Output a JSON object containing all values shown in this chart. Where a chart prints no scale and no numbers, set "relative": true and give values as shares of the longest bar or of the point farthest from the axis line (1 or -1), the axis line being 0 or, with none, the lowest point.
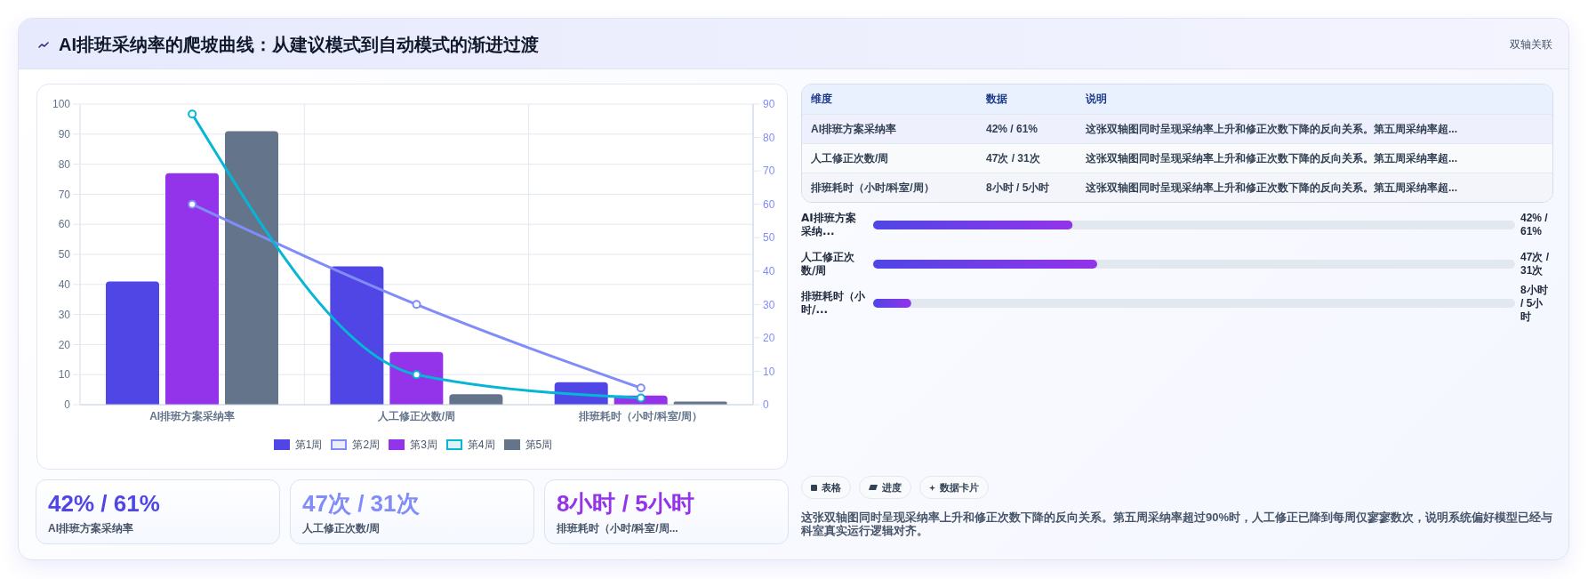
{
  "chart_data": [
    {
      "type": "other",
      "title": "AI排班采纳率的爬坡曲线：从建议模式到自动模式的渐进过渡",
      "subtitle": "双轴关联"
    },
    {
      "type": "bar",
      "categories": [
        "AI排班方案采纳率",
        "人工修正次数/周",
        "排班耗时（小时/科室/周）"
      ],
      "series": [
        {
          "name": "第1周",
          "type": "bar",
          "color": "#4f46e5",
          "values": [
            41,
            46,
            7.5
          ]
        },
        {
          "name": "第2周",
          "type": "line",
          "axis": "y2",
          "color": "#818cf8",
          "marker": "circle",
          "values": [
            60,
            30,
            5
          ]
        },
        {
          "name": "第3周",
          "type": "bar",
          "color": "#9333ea",
          "values": [
            77,
            17.5,
            3
          ]
        },
        {
          "name": "第4周",
          "type": "line",
          "axis": "y2",
          "color": "#06b6d4",
          "marker": "circle",
          "values": [
            87,
            9,
            2
          ]
        },
        {
          "name": "第5周",
          "type": "bar",
          "color": "#64748b",
          "values": [
            91,
            3.5,
            1
          ]
        }
      ],
      "ylim": [
        0,
        100
      ],
      "yticks": [
        0,
        10,
        20,
        30,
        40,
        50,
        60,
        70,
        80,
        90,
        100
      ],
      "y2lim": [
        0,
        90
      ],
      "y2ticks": [
        0,
        10,
        20,
        30,
        40,
        50,
        60,
        70,
        80,
        90
      ],
      "grid": true,
      "legend": "bottom"
    },
    {
      "type": "other",
      "categories": [
        "维度",
        "数据",
        "说明"
      ],
      "annotations": [
        "AI排班方案采纳率",
        "42% / 61%",
        "这张双轴图同时呈现采纳率上升和修正次数下降的反向关系。第五周采纳率超...",
        "人工修正次数/周",
        "47次 / 31次",
        "这张双轴图同时呈现采纳率上升和修正次数下降的反向关系。第五周采纳率超...",
        "排班耗时（小时/科室/周）",
        "8小时 / 5小时",
        "这张双轴图同时呈现采纳率上升和修正次数下降的反向关系。第五周采纳率超..."
      ]
    },
    {
      "type": "bar",
      "orientation": "horizontal",
      "relative": true,
      "categories": [
        "AI排班方案采纳...",
        "人工修正次数/周",
        "排班耗时（小时/..."
      ],
      "values": [
        0.89,
        1,
        0.17
      ],
      "color": "#4f46e5",
      "annotations": [
        "42% / 61%",
        "47次 / 31次",
        "8小时 / 5小时"
      ],
      "tick_labels": "y"
    },
    {
      "type": "other",
      "annotations": [
        "42% / 61%",
        "AI排班方案采纳率",
        "47次 / 31次",
        "人工修正次数/周",
        "8小时 / 5小时",
        "排班耗时（小时/科室/周..."
      ],
      "colors": [
        "#4f46e5",
        "#818cf8",
        "#9333ea"
      ]
    },
    {
      "type": "other",
      "annotations": [
        "表格",
        "进度",
        "数据卡片",
        "这张双轴图同时呈现采纳率上升和修正次数下降的反向关系。第五周采纳率超过90%时，人工修正已降到每周仅寥寥数次，说明系统偏好模型已经与科室真实运行逻辑对齐。"
      ]
    }
  ]
}
